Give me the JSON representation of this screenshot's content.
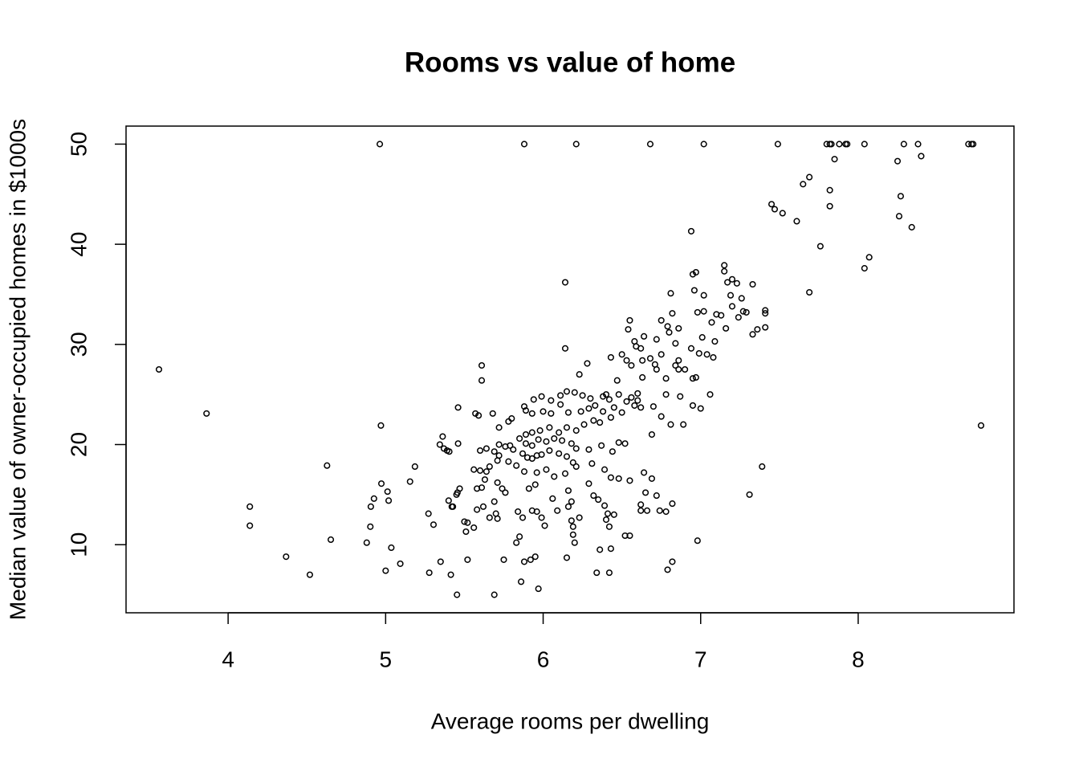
{
  "chart_data": {
    "type": "scatter",
    "title": "Rooms vs value of home",
    "x_label": "Average rooms per dwelling",
    "y_label": "Median value of owner-occupied homes in $1000s",
    "color": "#000000",
    "xlim": [
      3.352,
      8.989
    ],
    "ylim": [
      3.2,
      51.8
    ],
    "xticks": [
      4,
      5,
      6,
      7,
      8
    ],
    "yticks": [
      10,
      20,
      30,
      40,
      50
    ],
    "x": [
      3.561,
      3.863,
      4.138,
      4.138,
      4.368,
      4.519,
      4.628,
      4.652,
      4.88,
      4.903,
      4.906,
      4.926,
      4.97,
      4.973,
      5.0,
      5.012,
      5.019,
      5.036,
      5.093,
      5.155,
      5.186,
      5.272,
      5.277,
      5.304,
      5.344,
      5.349,
      5.362,
      5.39,
      5.404,
      5.414,
      5.427,
      5.453,
      5.456,
      5.52,
      4.963,
      5.88,
      6.21,
      6.68,
      7.02,
      7.49,
      7.8,
      7.82,
      7.83,
      7.88,
      7.92,
      7.93,
      8.04,
      8.29,
      8.38,
      8.7,
      8.72,
      8.73,
      7.45,
      7.47,
      7.52,
      7.61,
      7.65,
      7.69,
      7.69,
      7.76,
      7.82,
      7.82,
      7.85,
      8.04,
      8.07,
      8.25,
      8.27,
      8.26,
      8.34,
      8.4,
      8.78,
      7.39,
      7.31,
      6.94,
      7.15,
      7.15,
      7.2,
      7.23,
      7.17,
      7.33,
      6.97,
      6.95,
      6.81,
      6.96,
      7.02,
      7.19,
      7.26,
      7.27,
      7.2,
      7.29,
      7.41,
      7.41,
      7.02,
      6.82,
      6.98,
      7.1,
      7.13,
      7.24,
      6.55,
      6.75,
      6.79,
      7.07,
      7.16,
      7.36,
      7.41,
      7.33,
      6.8,
      6.86,
      6.54,
      6.64,
      6.72,
      6.84,
      7.01,
      7.09,
      6.59,
      6.62,
      6.94,
      6.99,
      7.04,
      7.08,
      6.43,
      6.5,
      6.63,
      6.68,
      6.86,
      6.28,
      6.71,
      6.84,
      6.86,
      6.72,
      6.9,
      6.63,
      6.78,
      6.95,
      6.97,
      6.47,
      5.61,
      5.61,
      6.23,
      6.14,
      6.14,
      6.7,
      6.75,
      6.81,
      6.89,
      6.95,
      7.0,
      7.06,
      6.87,
      6.69,
      6.78,
      6.6,
      6.6,
      6.56,
      6.53,
      6.48,
      6.4,
      6.38,
      6.42,
      6.3,
      6.25,
      6.2,
      6.15,
      6.11,
      6.05,
      5.99,
      5.94,
      5.88,
      5.89,
      5.93,
      6.0,
      6.05,
      6.11,
      6.16,
      6.24,
      6.29,
      6.33,
      6.38,
      6.45,
      6.5,
      6.58,
      6.62,
      6.43,
      6.36,
      6.32,
      6.26,
      6.21,
      6.15,
      6.1,
      6.04,
      5.98,
      5.93,
      5.89,
      5.85,
      5.89,
      5.93,
      5.97,
      6.02,
      6.07,
      6.12,
      6.18,
      6.21,
      6.29,
      6.37,
      6.44,
      6.48,
      6.52,
      5.87,
      5.9,
      5.93,
      5.96,
      5.99,
      6.04,
      6.1,
      6.15,
      6.19,
      5.81,
      5.76,
      5.72,
      5.69,
      5.64,
      5.6,
      5.56,
      5.6,
      5.66,
      5.71,
      5.78,
      5.83,
      5.88,
      5.96,
      6.02,
      6.07,
      6.14,
      6.21,
      6.31,
      6.39,
      6.43,
      6.48,
      6.55,
      6.64,
      6.69,
      6.65,
      6.72,
      6.62,
      6.62,
      6.78,
      6.82,
      6.74,
      6.79,
      6.82,
      6.98,
      6.52,
      6.43,
      6.36,
      6.42,
      6.34,
      6.42,
      6.41,
      6.45,
      6.39,
      6.32,
      6.35,
      6.29,
      6.23,
      6.2,
      6.19,
      6.19,
      6.18,
      6.15,
      6.16,
      6.18,
      6.16,
      6.09,
      6.06,
      6.01,
      5.99,
      5.97,
      5.95,
      5.92,
      5.88,
      5.86,
      5.85,
      5.83,
      5.84,
      5.87,
      5.93,
      5.96,
      5.91,
      5.95,
      5.76,
      5.74,
      5.71,
      5.69,
      5.7,
      5.71,
      5.66,
      5.62,
      5.58,
      5.56,
      5.51,
      5.5,
      5.52,
      5.69,
      5.75,
      5.42,
      5.4,
      5.45,
      5.47,
      5.58,
      5.61,
      5.63,
      5.64,
      5.59,
      5.57,
      5.46,
      5.68,
      5.72,
      5.78,
      5.8,
      5.72,
      5.79,
      5.46,
      5.37,
      6.55,
      6.4,
      6.66,
      6.58,
      6.56,
      6.53,
      6.75
    ],
    "values": [
      27.5,
      23.1,
      13.8,
      11.9,
      8.8,
      7.0,
      17.9,
      10.5,
      10.2,
      11.8,
      13.8,
      14.6,
      21.9,
      16.1,
      7.4,
      15.3,
      14.4,
      9.7,
      8.1,
      16.3,
      17.8,
      13.1,
      7.2,
      12.0,
      20.0,
      8.3,
      20.8,
      19.4,
      19.3,
      7.0,
      13.8,
      5.0,
      15.2,
      12.2,
      50,
      50,
      50,
      50,
      50,
      50,
      50,
      50,
      50,
      50,
      50,
      50,
      50,
      50,
      50,
      50,
      50,
      50,
      44.0,
      43.5,
      43.1,
      42.3,
      46.0,
      46.7,
      35.2,
      39.8,
      45.4,
      43.8,
      48.5,
      37.6,
      38.7,
      48.3,
      44.8,
      42.8,
      41.7,
      48.8,
      21.9,
      17.8,
      15.0,
      41.3,
      37.9,
      37.3,
      36.5,
      36.1,
      36.2,
      36.0,
      37.2,
      37.0,
      35.1,
      35.4,
      34.9,
      34.9,
      34.6,
      33.3,
      33.8,
      33.2,
      33.4,
      33.1,
      33.3,
      33.1,
      33.2,
      33.0,
      32.9,
      32.7,
      32.4,
      32.4,
      31.8,
      32.2,
      31.6,
      31.5,
      31.7,
      31.0,
      31.2,
      31.6,
      31.5,
      30.8,
      30.5,
      30.1,
      30.7,
      30.3,
      29.8,
      29.6,
      29.6,
      29.1,
      29.0,
      28.7,
      28.7,
      29.0,
      28.4,
      28.6,
      28.4,
      28.1,
      28.0,
      27.9,
      27.5,
      27.5,
      27.5,
      26.7,
      26.6,
      26.6,
      26.7,
      26.4,
      27.9,
      26.4,
      27.0,
      29.6,
      36.2,
      23.8,
      22.8,
      22.0,
      22.0,
      23.9,
      23.6,
      25.0,
      24.8,
      21.0,
      25.0,
      25.1,
      24.4,
      24.7,
      24.3,
      25.0,
      25.0,
      24.8,
      24.5,
      24.6,
      24.9,
      25.2,
      25.3,
      24.9,
      24.4,
      24.8,
      24.5,
      23.8,
      23.4,
      23.1,
      23.3,
      23.1,
      24.0,
      23.2,
      23.3,
      23.6,
      23.9,
      23.3,
      23.7,
      23.2,
      23.9,
      23.7,
      22.7,
      22.2,
      22.4,
      22.0,
      21.4,
      21.7,
      21.2,
      21.7,
      21.4,
      21.2,
      21.0,
      20.6,
      20.1,
      19.9,
      20.5,
      20.3,
      20.6,
      20.4,
      20.1,
      19.6,
      19.5,
      19.9,
      19.3,
      20.2,
      20.1,
      19.1,
      18.7,
      18.6,
      18.9,
      19.0,
      19.4,
      19.1,
      18.8,
      18.2,
      19.5,
      19.8,
      20.0,
      19.3,
      19.6,
      19.4,
      17.5,
      17.4,
      17.8,
      18.4,
      18.3,
      17.9,
      17.3,
      17.2,
      17.5,
      16.8,
      17.1,
      17.8,
      18.1,
      17.5,
      16.7,
      16.6,
      16.4,
      17.2,
      16.6,
      15.2,
      14.9,
      14.0,
      13.4,
      13.3,
      14.1,
      13.4,
      7.5,
      8.3,
      10.4,
      10.9,
      9.6,
      9.5,
      7.2,
      7.2,
      11.8,
      13.1,
      13.0,
      13.9,
      14.9,
      14.5,
      16.1,
      12.7,
      10.2,
      11.0,
      11.8,
      12.4,
      8.7,
      15.4,
      14.3,
      13.8,
      13.4,
      14.6,
      11.9,
      12.7,
      5.6,
      8.8,
      8.5,
      8.3,
      6.3,
      10.8,
      10.2,
      13.3,
      12.7,
      13.4,
      13.3,
      15.6,
      16.0,
      15.2,
      15.6,
      16.2,
      14.3,
      13.1,
      12.6,
      12.7,
      13.8,
      13.5,
      11.7,
      11.3,
      12.3,
      8.5,
      5.0,
      8.5,
      13.8,
      14.4,
      15.0,
      15.6,
      15.6,
      15.7,
      16.5,
      17.3,
      22.9,
      23.1,
      23.7,
      23.1,
      21.7,
      22.3,
      22.6,
      18.9,
      19.9,
      20.1,
      19.6,
      10.9,
      12.5,
      13.4,
      30.3,
      27.9,
      28.4,
      29.0
    ]
  }
}
